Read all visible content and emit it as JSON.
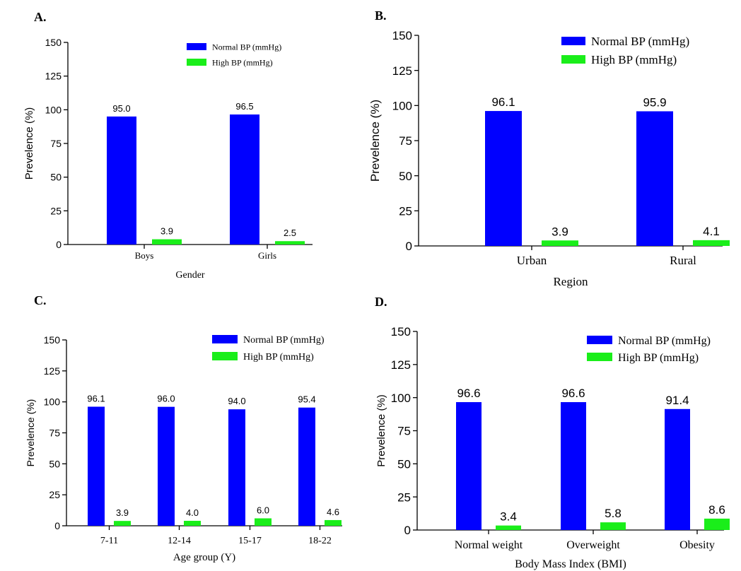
{
  "colors": {
    "normal": "#0000ff",
    "high": "#1aee1a",
    "axis": "#000000"
  },
  "chart_data": [
    {
      "panel": "A.",
      "type": "bar",
      "xlabel": "Gender",
      "ylabel": "Prevelence (%)",
      "ylim": [
        0,
        150
      ],
      "yticks": [
        0,
        25,
        50,
        75,
        100,
        125,
        150
      ],
      "legend": "top-right",
      "categories": [
        "Boys",
        "Girls"
      ],
      "series": [
        {
          "name": "Normal BP (mmHg)",
          "values": [
            95.0,
            96.5
          ],
          "labels": [
            "95.0",
            "96.5"
          ]
        },
        {
          "name": "High BP (mmHg)",
          "values": [
            3.9,
            2.5
          ],
          "labels": [
            "3.9",
            "2.5"
          ]
        }
      ]
    },
    {
      "panel": "B.",
      "type": "bar",
      "xlabel": "Region",
      "ylabel": "Prevelence (%)",
      "ylim": [
        0,
        150
      ],
      "yticks": [
        0,
        25,
        50,
        75,
        100,
        125,
        150
      ],
      "legend": "top-right",
      "categories": [
        "Urban",
        "Rural"
      ],
      "series": [
        {
          "name": "Normal BP (mmHg)",
          "values": [
            96.1,
            95.9
          ],
          "labels": [
            "96.1",
            "95.9"
          ]
        },
        {
          "name": "High BP (mmHg)",
          "values": [
            3.9,
            4.1
          ],
          "labels": [
            "3.9",
            "4.1"
          ]
        }
      ]
    },
    {
      "panel": "C.",
      "type": "bar",
      "xlabel": "Age group (Y)",
      "ylabel": "Prevelence (%)",
      "ylim": [
        0,
        150
      ],
      "yticks": [
        0,
        25,
        50,
        75,
        100,
        125,
        150
      ],
      "legend": "top-right",
      "categories": [
        "7-11",
        "12-14",
        "15-17",
        "18-22"
      ],
      "series": [
        {
          "name": "Normal BP (mmHg)",
          "values": [
            96.1,
            96.0,
            94.0,
            95.4
          ],
          "labels": [
            "96.1",
            "96.0",
            "94.0",
            "95.4"
          ]
        },
        {
          "name": "High BP (mmHg)",
          "values": [
            3.9,
            4.0,
            6.0,
            4.6
          ],
          "labels": [
            "3.9",
            "4.0",
            "6.0",
            "4.6"
          ]
        }
      ]
    },
    {
      "panel": "D.",
      "type": "bar",
      "xlabel": "Body Mass Index (BMI)",
      "ylabel": "Prevelence (%)",
      "ylim": [
        0,
        150
      ],
      "yticks": [
        0,
        25,
        50,
        75,
        100,
        125,
        150
      ],
      "legend": "top-right",
      "categories": [
        "Normal weight",
        "Overweight",
        "Obesity"
      ],
      "series": [
        {
          "name": "Normal BP (mmHg)",
          "values": [
            96.6,
            96.6,
            91.4
          ],
          "labels": [
            "96.6",
            "96.6",
            "91.4"
          ]
        },
        {
          "name": "High BP (mmHg)",
          "values": [
            3.4,
            5.8,
            8.6
          ],
          "labels": [
            "3.4",
            "5.8",
            "8.6"
          ]
        }
      ]
    }
  ]
}
